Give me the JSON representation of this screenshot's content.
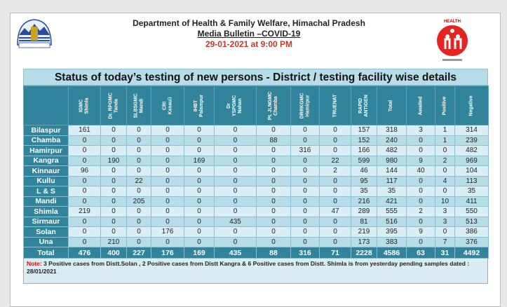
{
  "header": {
    "line1": "Department of Health & Family Welfare, Himachal Pradesh",
    "line2": "Media Bulletin –COVID-19",
    "line3": "29-01-2021 at 9:00 PM"
  },
  "logos": {
    "left": "Himachal Pradesh emblem",
    "right": "National Health Mission"
  },
  "table": {
    "title": "Status of today’s testing of new persons - District / testing facility wise details",
    "columns": [
      "IGMC\nShimla",
      "Dr. RPGMC\nTanda",
      "SLBSGMC\nMandi",
      "CRI\nKasauli",
      "IHBT\nPalampur",
      "Dr\nYSPGMC\nNahan",
      "Pt. JLNGMC\nChamba",
      "DRRKGMC\nHamirpur",
      "TRUENAT",
      "RAPID\nANTIGEN",
      "Total",
      "Awaited",
      "Positive",
      "Negative"
    ],
    "rows": [
      {
        "district": "Bilaspur",
        "values": [
          "161",
          "0",
          "0",
          "0",
          "0",
          "0",
          "0",
          "0",
          "0",
          "157",
          "318",
          "3",
          "1",
          "314"
        ]
      },
      {
        "district": "Chamba",
        "values": [
          "0",
          "0",
          "0",
          "0",
          "0",
          "0",
          "88",
          "0",
          "0",
          "152",
          "240",
          "0",
          "1",
          "239"
        ]
      },
      {
        "district": "Hamirpur",
        "values": [
          "0",
          "0",
          "0",
          "0",
          "0",
          "0",
          "0",
          "316",
          "0",
          "166",
          "482",
          "0",
          "0",
          "482"
        ]
      },
      {
        "district": "Kangra",
        "values": [
          "0",
          "190",
          "0",
          "0",
          "169",
          "0",
          "0",
          "0",
          "22",
          "599",
          "980",
          "9",
          "2",
          "969"
        ]
      },
      {
        "district": "Kinnaur",
        "values": [
          "96",
          "0",
          "0",
          "0",
          "0",
          "0",
          "0",
          "0",
          "2",
          "46",
          "144",
          "40",
          "0",
          "104"
        ]
      },
      {
        "district": "Kullu",
        "values": [
          "0",
          "0",
          "22",
          "0",
          "0",
          "0",
          "0",
          "0",
          "0",
          "95",
          "117",
          "0",
          "4",
          "113"
        ]
      },
      {
        "district": "L & S",
        "values": [
          "0",
          "0",
          "0",
          "0",
          "0",
          "0",
          "0",
          "0",
          "0",
          "35",
          "35",
          "0",
          "0",
          "35"
        ]
      },
      {
        "district": "Mandi",
        "values": [
          "0",
          "0",
          "205",
          "0",
          "0",
          "0",
          "0",
          "0",
          "0",
          "216",
          "421",
          "0",
          "10",
          "411"
        ]
      },
      {
        "district": "Shimla",
        "values": [
          "219",
          "0",
          "0",
          "0",
          "0",
          "0",
          "0",
          "0",
          "47",
          "289",
          "555",
          "2",
          "3",
          "550"
        ]
      },
      {
        "district": "Sirmaur",
        "values": [
          "0",
          "0",
          "0",
          "0",
          "0",
          "435",
          "0",
          "0",
          "0",
          "81",
          "516",
          "0",
          "3",
          "513"
        ]
      },
      {
        "district": "Solan",
        "values": [
          "0",
          "0",
          "0",
          "176",
          "0",
          "0",
          "0",
          "0",
          "0",
          "219",
          "395",
          "9",
          "0",
          "386"
        ]
      },
      {
        "district": "Una",
        "values": [
          "0",
          "210",
          "0",
          "0",
          "0",
          "0",
          "0",
          "0",
          "0",
          "173",
          "383",
          "0",
          "7",
          "376"
        ]
      }
    ],
    "total": {
      "label": "Total",
      "values": [
        "476",
        "400",
        "227",
        "176",
        "169",
        "435",
        "88",
        "316",
        "71",
        "2228",
        "4586",
        "63",
        "31",
        "4492"
      ]
    }
  },
  "note": {
    "label": "Note:",
    "text": " 3  Positive cases from Distt.Solan , 2 Positive cases from Distt Kangra & 6 Positive cases from Distt. Shimla is from yesterday pending samples dated : 28/01/2021"
  }
}
